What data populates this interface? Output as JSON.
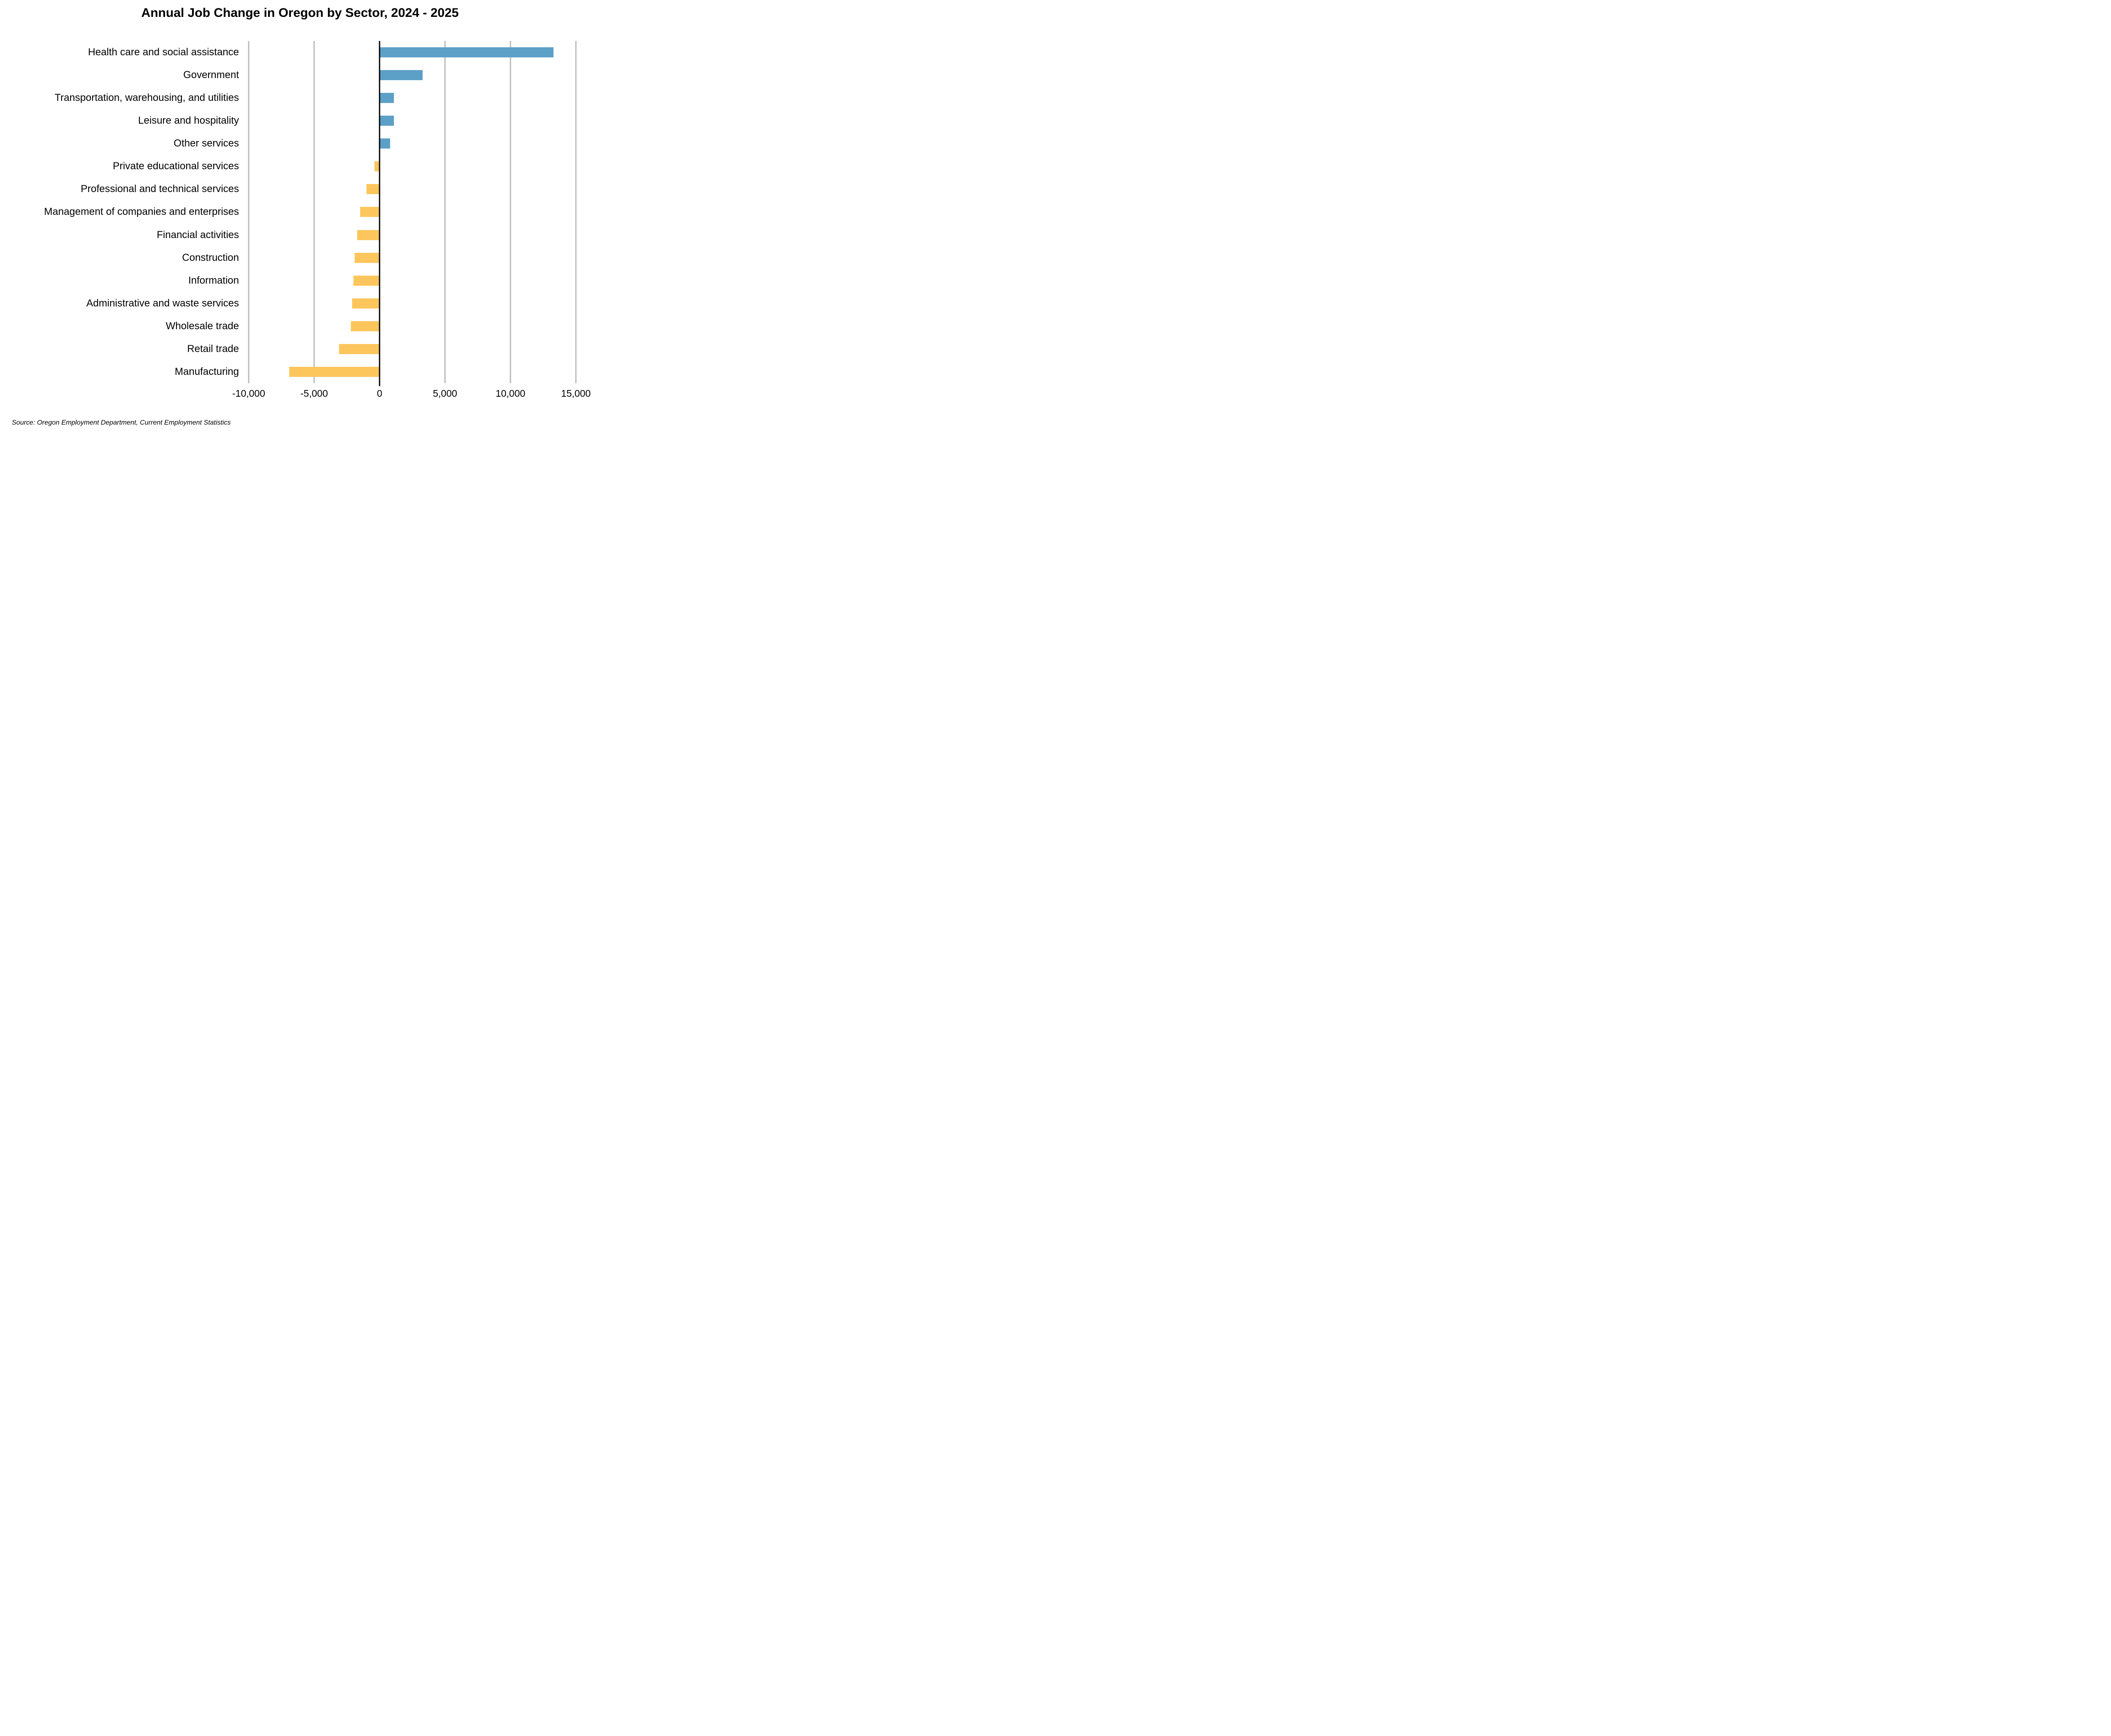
{
  "title": "Annual Job Change in Oregon by Sector, 2024 - 2025",
  "source_note": "Source: Oregon Employment Department, Current Employment Statistics",
  "colors": {
    "positive_bar": "#5CA0C8",
    "negative_bar": "#FDC65D",
    "gridline": "#B9B9B9",
    "zero_axis": "#000000",
    "text": "#000000"
  },
  "chart_data": {
    "type": "bar",
    "orientation": "horizontal",
    "title": "Annual Job Change in Oregon by Sector, 2024 - 2025",
    "categories": [
      "Health care and social assistance",
      "Government",
      "Transportation, warehousing, and utilities",
      "Leisure and hospitality",
      "Other services",
      "Private educational services",
      "Professional and technical services",
      "Management of companies and enterprises",
      "Financial activities",
      "Construction",
      "Information",
      "Administrative and waste services",
      "Wholesale trade",
      "Retail trade",
      "Manufacturing"
    ],
    "values": [
      13300,
      3300,
      1100,
      1100,
      800,
      -400,
      -1000,
      -1500,
      -1700,
      -1900,
      -2000,
      -2100,
      -2200,
      -3100,
      -6900
    ],
    "xlabel": "",
    "ylabel": "",
    "xlim": [
      -10000,
      15000
    ],
    "xticks": [
      -10000,
      -5000,
      0,
      5000,
      10000,
      15000
    ],
    "xtick_labels": [
      "-10,000",
      "-5,000",
      "0",
      "5,000",
      "10,000",
      "15,000"
    ],
    "grid": true,
    "legend_position": "none",
    "color_rule": "positive values blue, negative values yellow"
  }
}
